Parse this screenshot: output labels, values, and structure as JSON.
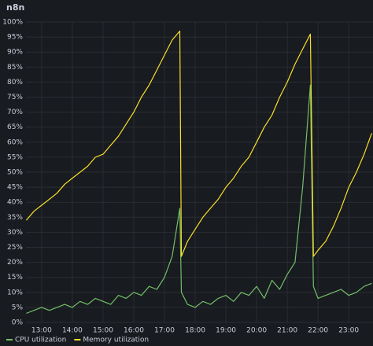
{
  "chart_data": {
    "type": "line",
    "title": "n8n",
    "x": [
      12.5,
      12.75,
      13,
      13.25,
      13.5,
      13.75,
      14,
      14.25,
      14.5,
      14.75,
      15,
      15.25,
      15.5,
      15.75,
      16,
      16.25,
      16.5,
      16.75,
      17,
      17.25,
      17.5,
      17.55,
      17.75,
      18,
      18.25,
      18.5,
      18.75,
      19,
      19.25,
      19.5,
      19.75,
      20,
      20.25,
      20.5,
      20.75,
      21,
      21.25,
      21.5,
      21.75,
      21.85,
      22,
      22.25,
      22.5,
      22.75,
      23,
      23.25,
      23.5,
      23.75
    ],
    "series": [
      {
        "name": "CPU utilization",
        "color": "#73bf69",
        "values": [
          3,
          4,
          5,
          4,
          5,
          6,
          5,
          7,
          6,
          8,
          7,
          6,
          9,
          8,
          10,
          9,
          12,
          11,
          15,
          22,
          38,
          10,
          6,
          5,
          7,
          6,
          8,
          9,
          7,
          10,
          9,
          12,
          8,
          14,
          11,
          16,
          20,
          45,
          79,
          12,
          8,
          9,
          10,
          11,
          9,
          10,
          12,
          13
        ]
      },
      {
        "name": "Memory utilization",
        "color": "#fade2a",
        "values": [
          34,
          37,
          39,
          41,
          43,
          46,
          48,
          50,
          52,
          55,
          56,
          59,
          62,
          66,
          70,
          75,
          79,
          84,
          89,
          94,
          97,
          22,
          27,
          31,
          35,
          38,
          41,
          45,
          48,
          52,
          55,
          60,
          65,
          69,
          75,
          80,
          86,
          91,
          96,
          22,
          24,
          27,
          32,
          38,
          45,
          50,
          56,
          63
        ]
      }
    ],
    "xlim": [
      12.49,
      23.79
    ],
    "xticks": [
      {
        "value": 13,
        "label": "13:00"
      },
      {
        "value": 14,
        "label": "14:00"
      },
      {
        "value": 15,
        "label": "15:00"
      },
      {
        "value": 16,
        "label": "16:00"
      },
      {
        "value": 17,
        "label": "17:00"
      },
      {
        "value": 18,
        "label": "18:00"
      },
      {
        "value": 19,
        "label": "19:00"
      },
      {
        "value": 20,
        "label": "20:00"
      },
      {
        "value": 21,
        "label": "21:00"
      },
      {
        "value": 22,
        "label": "22:00"
      },
      {
        "value": 23,
        "label": "23:00"
      }
    ],
    "ylim": [
      0,
      100
    ],
    "yticks": [
      {
        "value": 0,
        "label": "0%"
      },
      {
        "value": 5,
        "label": "5%"
      },
      {
        "value": 10,
        "label": "10%"
      },
      {
        "value": 15,
        "label": "15%"
      },
      {
        "value": 20,
        "label": "20%"
      },
      {
        "value": 25,
        "label": "25%"
      },
      {
        "value": 30,
        "label": "30%"
      },
      {
        "value": 35,
        "label": "35%"
      },
      {
        "value": 40,
        "label": "40%"
      },
      {
        "value": 45,
        "label": "45%"
      },
      {
        "value": 50,
        "label": "50%"
      },
      {
        "value": 55,
        "label": "55%"
      },
      {
        "value": 60,
        "label": "60%"
      },
      {
        "value": 65,
        "label": "65%"
      },
      {
        "value": 70,
        "label": "70%"
      },
      {
        "value": 75,
        "label": "75%"
      },
      {
        "value": 80,
        "label": "80%"
      },
      {
        "value": 85,
        "label": "85%"
      },
      {
        "value": 90,
        "label": "90%"
      },
      {
        "value": 95,
        "label": "95%"
      },
      {
        "value": 100,
        "label": "100%"
      }
    ],
    "grid": true
  }
}
